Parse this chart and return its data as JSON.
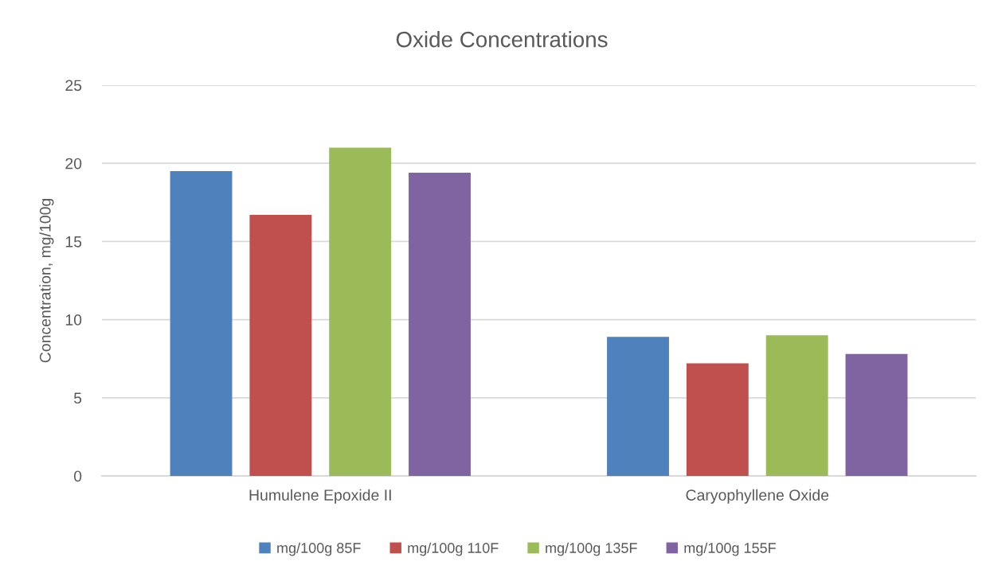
{
  "chart_data": {
    "type": "bar",
    "title": "Oxide Concentrations",
    "ylabel": "Concentration, mg/100g",
    "categories": [
      "Humulene Epoxide II",
      "Caryophyllene Oxide"
    ],
    "series": [
      {
        "name": "mg/100g 85F",
        "color": "#4f81bd",
        "values": [
          19.5,
          8.9
        ]
      },
      {
        "name": "mg/100g 110F",
        "color": "#c0504d",
        "values": [
          16.7,
          7.2
        ]
      },
      {
        "name": "mg/100g 135F",
        "color": "#9bbb59",
        "values": [
          21.0,
          9.0
        ]
      },
      {
        "name": "mg/100g 155F",
        "color": "#8064a2",
        "values": [
          19.4,
          7.8
        ]
      }
    ],
    "ylim": [
      0,
      25
    ],
    "yticks": [
      0,
      5,
      10,
      15,
      20,
      25
    ],
    "grid": "y",
    "legend": "bottom"
  }
}
